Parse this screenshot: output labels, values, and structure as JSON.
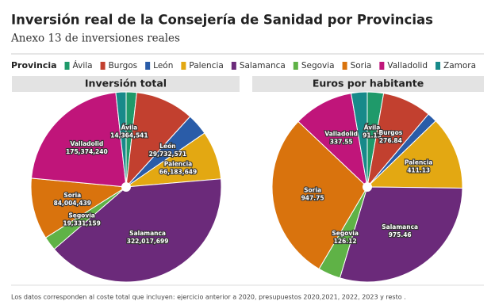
{
  "header": {
    "title": "Inversión real de la Consejería de Sanidad por Provincias",
    "subtitle": "Anexo 13 de inversiones reales"
  },
  "legend": {
    "title": "Provincia"
  },
  "note": "Los datos corresponden al coste total que incluyen: ejercicio anterior a 2020, presupuestos 2020,2021, 2022, 2023 y resto .",
  "chart_data": [
    {
      "type": "pie",
      "title": "Inversión total",
      "categories": [
        "Ávila",
        "Burgos",
        "León",
        "Palencia",
        "Salamanca",
        "Segovia",
        "Soria",
        "Valladolid",
        "Zamora"
      ],
      "values": [
        14364541,
        80000000,
        29732571,
        66183649,
        322017699,
        19331159,
        84004439,
        175374240,
        14000000
      ],
      "value_labels": [
        "14,364,541",
        null,
        "29,732,571",
        "66,183,649",
        "322,017,699",
        "19,331,159",
        "84,004,439",
        "175,374,240",
        null
      ],
      "colors": [
        "#1f9a6a",
        "#c2402f",
        "#2a5ca8",
        "#e3a812",
        "#6b2a7a",
        "#5fb246",
        "#d9730d",
        "#c0157a",
        "#178a8a"
      ]
    },
    {
      "type": "pie",
      "title": "Euros por habitante",
      "categories": [
        "Ávila",
        "Burgos",
        "León",
        "Palencia",
        "Salamanca",
        "Segovia",
        "Soria",
        "Valladolid",
        "Zamora"
      ],
      "values": [
        91.13,
        276.84,
        55,
        411.13,
        975.46,
        126.12,
        947.75,
        337.55,
        90
      ],
      "value_labels": [
        "91.13",
        "276.84",
        null,
        "411.13",
        "975.46",
        "126.12",
        "947.75",
        "337.55",
        null
      ],
      "colors": [
        "#1f9a6a",
        "#c2402f",
        "#2a5ca8",
        "#e3a812",
        "#6b2a7a",
        "#5fb246",
        "#d9730d",
        "#c0157a",
        "#178a8a"
      ]
    }
  ]
}
